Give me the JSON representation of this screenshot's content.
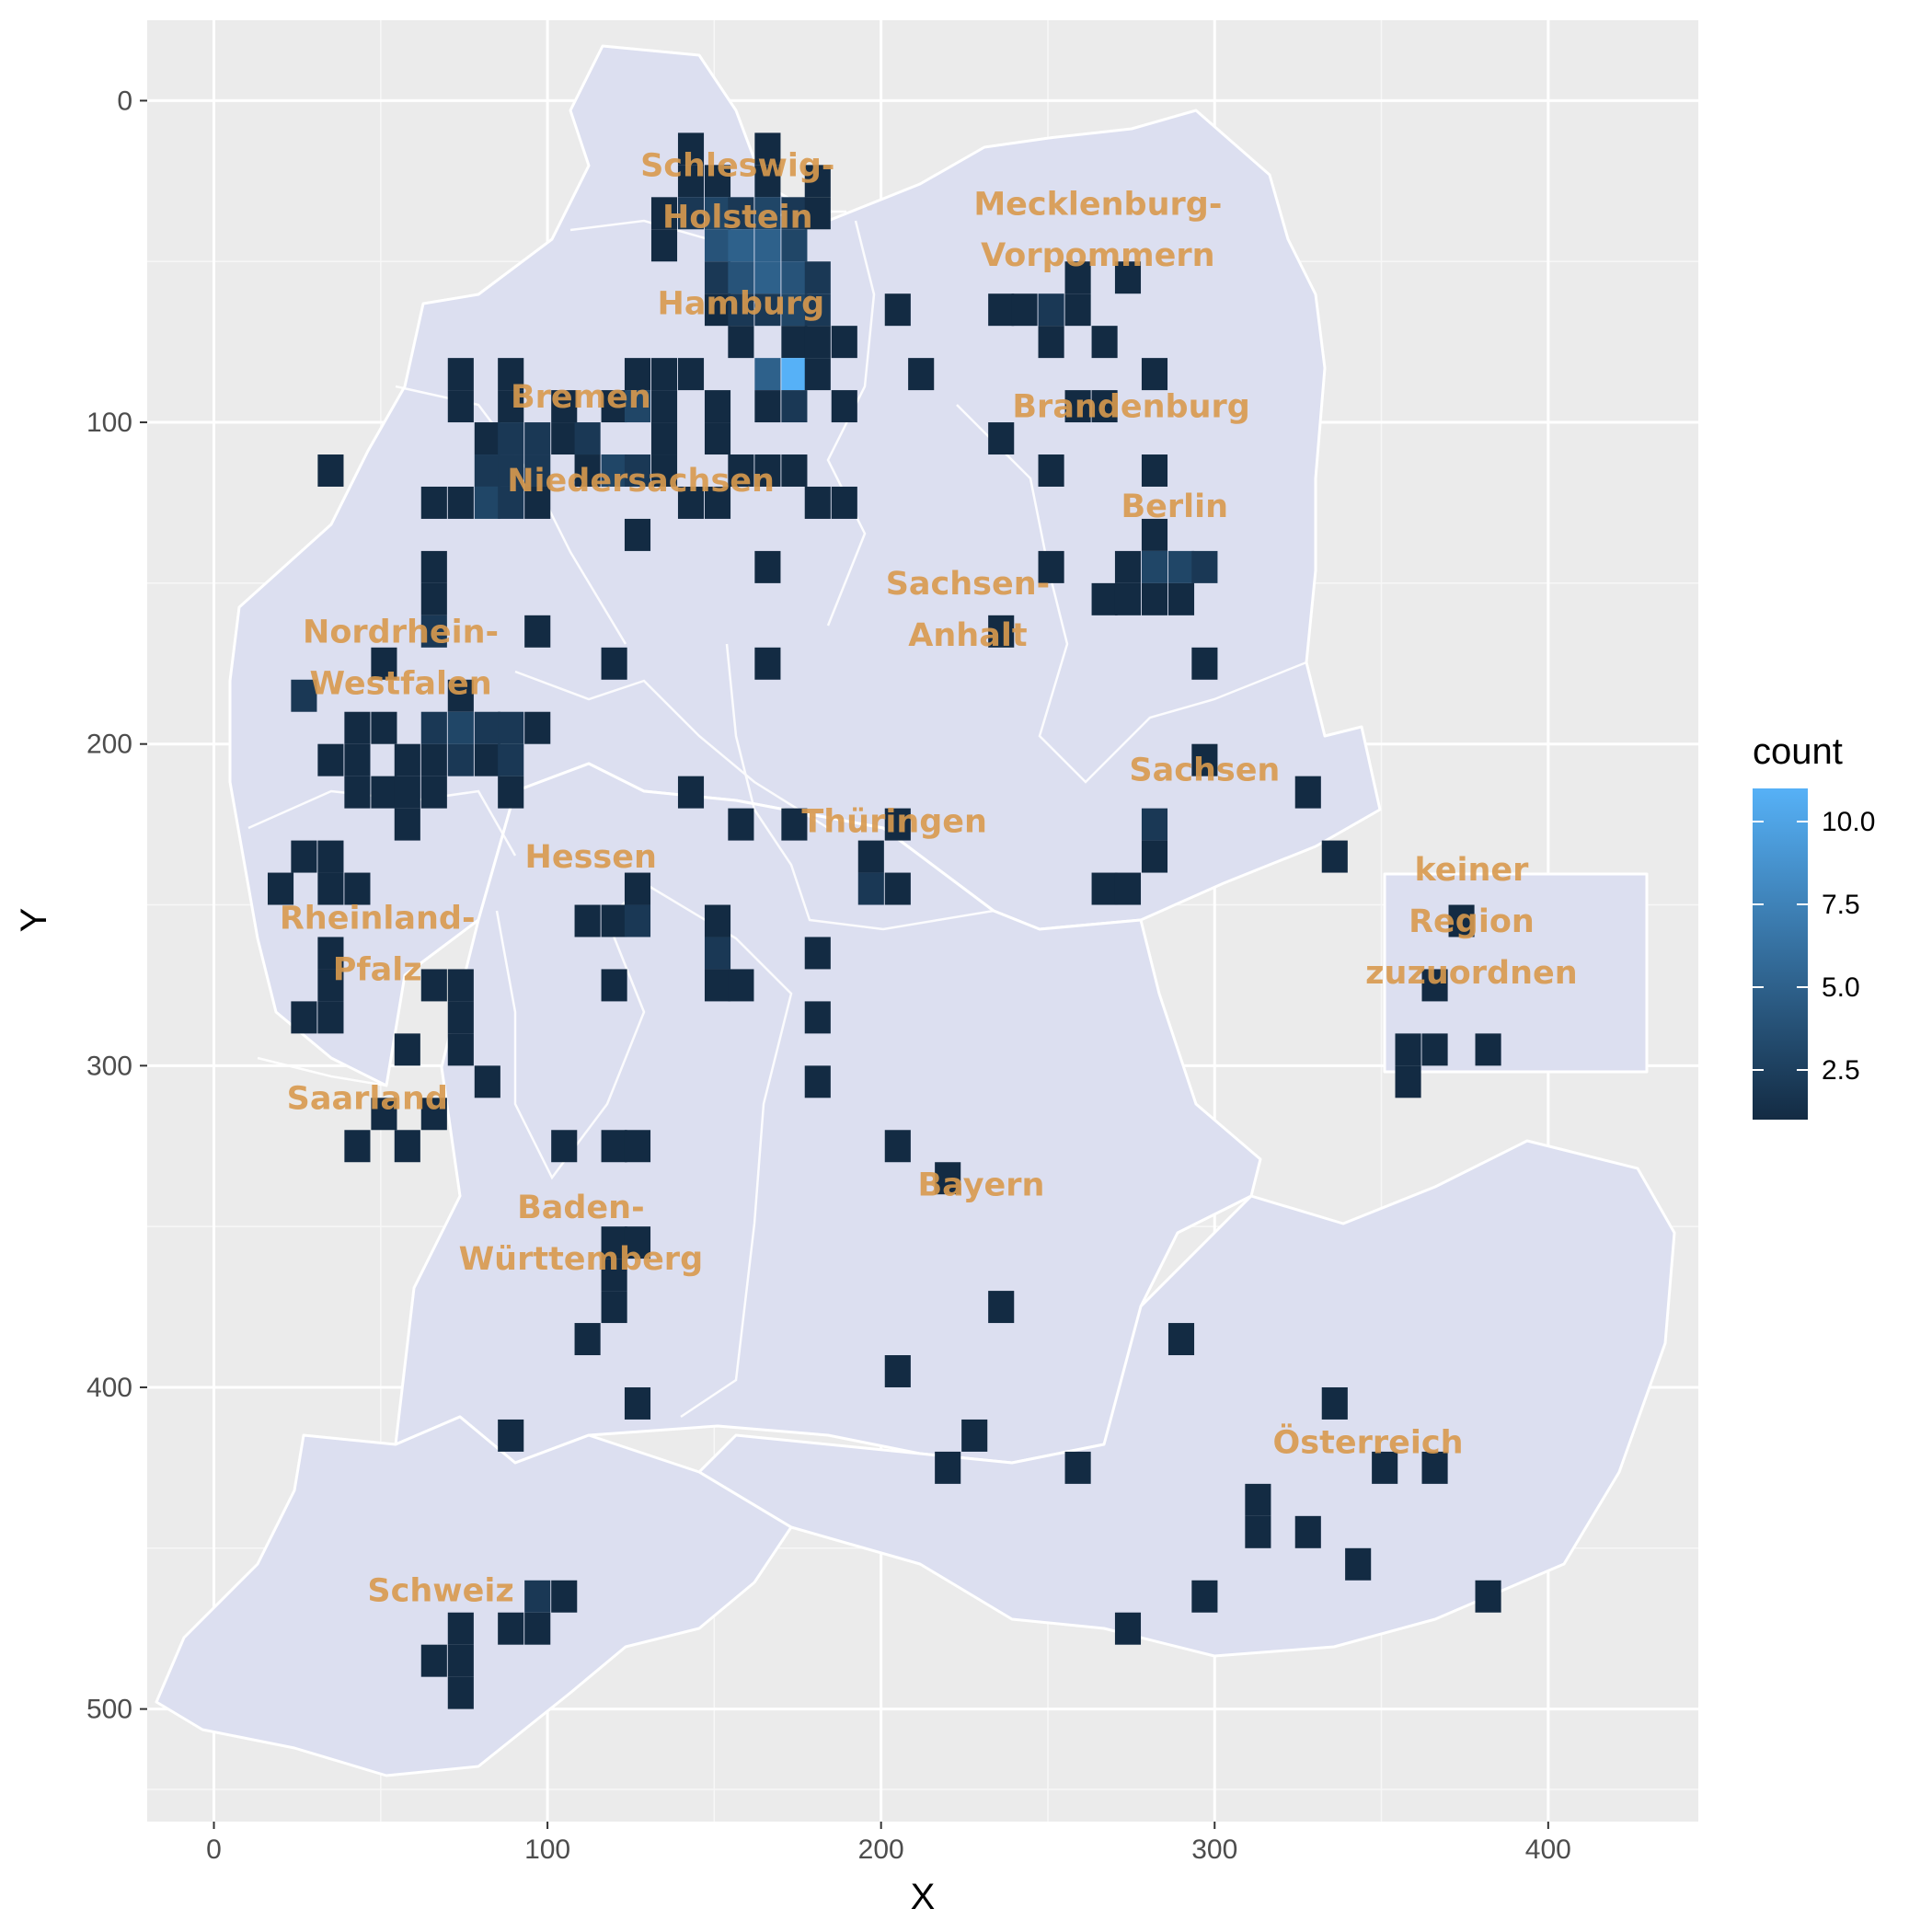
{
  "chart_data": {
    "type": "heatmap",
    "xlabel": "X",
    "ylabel": "Y",
    "xlim": [
      -20,
      445
    ],
    "ylim": [
      -25,
      535
    ],
    "y_reversed": true,
    "x_ticks": [
      0,
      100,
      200,
      300,
      400
    ],
    "y_ticks": [
      0,
      100,
      200,
      300,
      400,
      500
    ],
    "x_tick_labels": [
      "0",
      "100",
      "200",
      "300",
      "400"
    ],
    "y_tick_labels": [
      "0",
      "100",
      "200",
      "300",
      "400",
      "500"
    ],
    "grid": true,
    "bin_width": 7.75,
    "bin_height": 10,
    "legend": {
      "title": "count",
      "position": "right",
      "min": 1,
      "max": 11,
      "breaks": [
        2.5,
        5.0,
        7.5,
        10.0
      ],
      "break_labels": [
        "2.5",
        "5.0",
        "7.5",
        "10.0"
      ],
      "low_color": "#132b43",
      "high_color": "#56b1f7"
    },
    "map_regions": [
      {
        "name": "Schleswig-Holstein",
        "lines": [
          "Schleswig-",
          "Holstein"
        ],
        "x": 157,
        "y": 28
      },
      {
        "name": "Mecklenburg-Vorpommern",
        "lines": [
          "Mecklenburg-",
          "Vorpommern"
        ],
        "x": 265,
        "y": 40
      },
      {
        "name": "Hamburg",
        "lines": [
          "Hamburg"
        ],
        "x": 158,
        "y": 63
      },
      {
        "name": "Bremen",
        "lines": [
          "Bremen"
        ],
        "x": 110,
        "y": 92
      },
      {
        "name": "Brandenburg",
        "lines": [
          "Brandenburg"
        ],
        "x": 275,
        "y": 95
      },
      {
        "name": "Niedersachsen",
        "lines": [
          "Niedersachsen"
        ],
        "x": 128,
        "y": 118
      },
      {
        "name": "Berlin",
        "lines": [
          "Berlin"
        ],
        "x": 288,
        "y": 126
      },
      {
        "name": "Sachsen-Anhalt",
        "lines": [
          "Sachsen-",
          "Anhalt"
        ],
        "x": 226,
        "y": 158
      },
      {
        "name": "Nordrhein-Westfalen",
        "lines": [
          "Nordrhein-",
          "Westfalen"
        ],
        "x": 56,
        "y": 173
      },
      {
        "name": "Sachsen",
        "lines": [
          "Sachsen"
        ],
        "x": 297,
        "y": 208
      },
      {
        "name": "Thüringen",
        "lines": [
          "Thüringen"
        ],
        "x": 204,
        "y": 224
      },
      {
        "name": "Hessen",
        "lines": [
          "Hessen"
        ],
        "x": 113,
        "y": 235
      },
      {
        "name": "keiner Region zuzuordnen",
        "lines": [
          "keiner",
          "Region",
          "zuzuordnen"
        ],
        "x": 377,
        "y": 255
      },
      {
        "name": "Rheinland-Pfalz",
        "lines": [
          "Rheinland-",
          "Pfalz"
        ],
        "x": 49,
        "y": 262
      },
      {
        "name": "Saarland",
        "lines": [
          "Saarland"
        ],
        "x": 46,
        "y": 310
      },
      {
        "name": "Bayern",
        "lines": [
          "Bayern"
        ],
        "x": 230,
        "y": 337
      },
      {
        "name": "Baden-Württemberg",
        "lines": [
          "Baden-",
          "Württemberg"
        ],
        "x": 110,
        "y": 352
      },
      {
        "name": "Österreich",
        "lines": [
          "Österreich"
        ],
        "x": 346,
        "y": 417
      },
      {
        "name": "Schweiz",
        "lines": [
          "Schweiz"
        ],
        "x": 68,
        "y": 463
      }
    ],
    "bins": [
      {
        "x": 143,
        "y": 15,
        "count": 1
      },
      {
        "x": 166,
        "y": 15,
        "count": 1
      },
      {
        "x": 143,
        "y": 25,
        "count": 1
      },
      {
        "x": 151,
        "y": 25,
        "count": 1
      },
      {
        "x": 166,
        "y": 25,
        "count": 1
      },
      {
        "x": 181,
        "y": 25,
        "count": 1
      },
      {
        "x": 135,
        "y": 35,
        "count": 1
      },
      {
        "x": 143,
        "y": 35,
        "count": 2
      },
      {
        "x": 151,
        "y": 35,
        "count": 3
      },
      {
        "x": 158,
        "y": 35,
        "count": 2
      },
      {
        "x": 166,
        "y": 35,
        "count": 3
      },
      {
        "x": 174,
        "y": 35,
        "count": 2
      },
      {
        "x": 181,
        "y": 35,
        "count": 1
      },
      {
        "x": 135,
        "y": 45,
        "count": 1
      },
      {
        "x": 151,
        "y": 45,
        "count": 4
      },
      {
        "x": 158,
        "y": 45,
        "count": 5
      },
      {
        "x": 166,
        "y": 45,
        "count": 5
      },
      {
        "x": 174,
        "y": 45,
        "count": 3
      },
      {
        "x": 151,
        "y": 55,
        "count": 2
      },
      {
        "x": 158,
        "y": 55,
        "count": 4
      },
      {
        "x": 166,
        "y": 55,
        "count": 5
      },
      {
        "x": 174,
        "y": 55,
        "count": 4
      },
      {
        "x": 181,
        "y": 55,
        "count": 2
      },
      {
        "x": 259,
        "y": 55,
        "count": 1
      },
      {
        "x": 274,
        "y": 55,
        "count": 1
      },
      {
        "x": 151,
        "y": 65,
        "count": 1
      },
      {
        "x": 158,
        "y": 65,
        "count": 2
      },
      {
        "x": 166,
        "y": 65,
        "count": 2
      },
      {
        "x": 174,
        "y": 65,
        "count": 3
      },
      {
        "x": 181,
        "y": 65,
        "count": 2
      },
      {
        "x": 205,
        "y": 65,
        "count": 1
      },
      {
        "x": 236,
        "y": 65,
        "count": 1
      },
      {
        "x": 243,
        "y": 65,
        "count": 1
      },
      {
        "x": 251,
        "y": 65,
        "count": 2
      },
      {
        "x": 259,
        "y": 65,
        "count": 1
      },
      {
        "x": 158,
        "y": 75,
        "count": 1
      },
      {
        "x": 174,
        "y": 75,
        "count": 1
      },
      {
        "x": 181,
        "y": 75,
        "count": 1
      },
      {
        "x": 189,
        "y": 75,
        "count": 1
      },
      {
        "x": 251,
        "y": 75,
        "count": 1
      },
      {
        "x": 267,
        "y": 75,
        "count": 1
      },
      {
        "x": 74,
        "y": 85,
        "count": 1
      },
      {
        "x": 89,
        "y": 85,
        "count": 1
      },
      {
        "x": 127,
        "y": 85,
        "count": 1
      },
      {
        "x": 135,
        "y": 85,
        "count": 1
      },
      {
        "x": 143,
        "y": 85,
        "count": 1
      },
      {
        "x": 166,
        "y": 85,
        "count": 5
      },
      {
        "x": 174,
        "y": 85,
        "count": 11
      },
      {
        "x": 181,
        "y": 85,
        "count": 1
      },
      {
        "x": 212,
        "y": 85,
        "count": 1
      },
      {
        "x": 282,
        "y": 85,
        "count": 1
      },
      {
        "x": 74,
        "y": 95,
        "count": 1
      },
      {
        "x": 89,
        "y": 95,
        "count": 1
      },
      {
        "x": 105,
        "y": 95,
        "count": 1
      },
      {
        "x": 120,
        "y": 95,
        "count": 1
      },
      {
        "x": 127,
        "y": 95,
        "count": 3
      },
      {
        "x": 135,
        "y": 95,
        "count": 1
      },
      {
        "x": 151,
        "y": 95,
        "count": 1
      },
      {
        "x": 166,
        "y": 95,
        "count": 1
      },
      {
        "x": 174,
        "y": 95,
        "count": 2
      },
      {
        "x": 189,
        "y": 95,
        "count": 1
      },
      {
        "x": 259,
        "y": 95,
        "count": 1
      },
      {
        "x": 267,
        "y": 95,
        "count": 1
      },
      {
        "x": 82,
        "y": 105,
        "count": 1
      },
      {
        "x": 89,
        "y": 105,
        "count": 2
      },
      {
        "x": 97,
        "y": 105,
        "count": 2
      },
      {
        "x": 105,
        "y": 105,
        "count": 1
      },
      {
        "x": 112,
        "y": 105,
        "count": 2
      },
      {
        "x": 135,
        "y": 105,
        "count": 1
      },
      {
        "x": 151,
        "y": 105,
        "count": 1
      },
      {
        "x": 236,
        "y": 105,
        "count": 1
      },
      {
        "x": 35,
        "y": 115,
        "count": 1
      },
      {
        "x": 82,
        "y": 115,
        "count": 2
      },
      {
        "x": 89,
        "y": 115,
        "count": 2
      },
      {
        "x": 97,
        "y": 115,
        "count": 2
      },
      {
        "x": 112,
        "y": 115,
        "count": 1
      },
      {
        "x": 120,
        "y": 115,
        "count": 3
      },
      {
        "x": 127,
        "y": 115,
        "count": 2
      },
      {
        "x": 135,
        "y": 115,
        "count": 1
      },
      {
        "x": 158,
        "y": 115,
        "count": 1
      },
      {
        "x": 166,
        "y": 115,
        "count": 1
      },
      {
        "x": 174,
        "y": 115,
        "count": 1
      },
      {
        "x": 251,
        "y": 115,
        "count": 1
      },
      {
        "x": 282,
        "y": 115,
        "count": 1
      },
      {
        "x": 66,
        "y": 125,
        "count": 1
      },
      {
        "x": 74,
        "y": 125,
        "count": 1
      },
      {
        "x": 82,
        "y": 125,
        "count": 3
      },
      {
        "x": 89,
        "y": 125,
        "count": 2
      },
      {
        "x": 97,
        "y": 125,
        "count": 1
      },
      {
        "x": 143,
        "y": 125,
        "count": 1
      },
      {
        "x": 151,
        "y": 125,
        "count": 1
      },
      {
        "x": 181,
        "y": 125,
        "count": 1
      },
      {
        "x": 189,
        "y": 125,
        "count": 1
      },
      {
        "x": 127,
        "y": 135,
        "count": 1
      },
      {
        "x": 282,
        "y": 135,
        "count": 1
      },
      {
        "x": 66,
        "y": 145,
        "count": 1
      },
      {
        "x": 166,
        "y": 145,
        "count": 1
      },
      {
        "x": 251,
        "y": 145,
        "count": 1
      },
      {
        "x": 274,
        "y": 145,
        "count": 1
      },
      {
        "x": 282,
        "y": 145,
        "count": 3
      },
      {
        "x": 290,
        "y": 145,
        "count": 3
      },
      {
        "x": 297,
        "y": 145,
        "count": 2
      },
      {
        "x": 66,
        "y": 155,
        "count": 1
      },
      {
        "x": 267,
        "y": 155,
        "count": 1
      },
      {
        "x": 274,
        "y": 155,
        "count": 1
      },
      {
        "x": 282,
        "y": 155,
        "count": 1
      },
      {
        "x": 290,
        "y": 155,
        "count": 1
      },
      {
        "x": 66,
        "y": 165,
        "count": 2
      },
      {
        "x": 97,
        "y": 165,
        "count": 1
      },
      {
        "x": 236,
        "y": 165,
        "count": 1
      },
      {
        "x": 51,
        "y": 175,
        "count": 1
      },
      {
        "x": 120,
        "y": 175,
        "count": 1
      },
      {
        "x": 166,
        "y": 175,
        "count": 1
      },
      {
        "x": 297,
        "y": 175,
        "count": 1
      },
      {
        "x": 27,
        "y": 185,
        "count": 2
      },
      {
        "x": 74,
        "y": 185,
        "count": 1
      },
      {
        "x": 43,
        "y": 195,
        "count": 1
      },
      {
        "x": 51,
        "y": 195,
        "count": 1
      },
      {
        "x": 66,
        "y": 195,
        "count": 2
      },
      {
        "x": 74,
        "y": 195,
        "count": 3
      },
      {
        "x": 82,
        "y": 195,
        "count": 2
      },
      {
        "x": 89,
        "y": 195,
        "count": 2
      },
      {
        "x": 97,
        "y": 195,
        "count": 1
      },
      {
        "x": 35,
        "y": 205,
        "count": 1
      },
      {
        "x": 43,
        "y": 205,
        "count": 1
      },
      {
        "x": 58,
        "y": 205,
        "count": 1
      },
      {
        "x": 66,
        "y": 205,
        "count": 1
      },
      {
        "x": 74,
        "y": 205,
        "count": 2
      },
      {
        "x": 82,
        "y": 205,
        "count": 1
      },
      {
        "x": 89,
        "y": 205,
        "count": 2
      },
      {
        "x": 297,
        "y": 205,
        "count": 1
      },
      {
        "x": 43,
        "y": 215,
        "count": 1
      },
      {
        "x": 51,
        "y": 215,
        "count": 1
      },
      {
        "x": 58,
        "y": 215,
        "count": 1
      },
      {
        "x": 66,
        "y": 215,
        "count": 1
      },
      {
        "x": 89,
        "y": 215,
        "count": 1
      },
      {
        "x": 143,
        "y": 215,
        "count": 1
      },
      {
        "x": 328,
        "y": 215,
        "count": 1
      },
      {
        "x": 58,
        "y": 225,
        "count": 1
      },
      {
        "x": 158,
        "y": 225,
        "count": 1
      },
      {
        "x": 174,
        "y": 225,
        "count": 1
      },
      {
        "x": 205,
        "y": 225,
        "count": 1
      },
      {
        "x": 282,
        "y": 225,
        "count": 2
      },
      {
        "x": 27,
        "y": 235,
        "count": 1
      },
      {
        "x": 35,
        "y": 235,
        "count": 1
      },
      {
        "x": 197,
        "y": 235,
        "count": 1
      },
      {
        "x": 282,
        "y": 235,
        "count": 1
      },
      {
        "x": 336,
        "y": 235,
        "count": 1
      },
      {
        "x": 20,
        "y": 245,
        "count": 1
      },
      {
        "x": 35,
        "y": 245,
        "count": 1
      },
      {
        "x": 43,
        "y": 245,
        "count": 1
      },
      {
        "x": 127,
        "y": 245,
        "count": 1
      },
      {
        "x": 197,
        "y": 245,
        "count": 2
      },
      {
        "x": 205,
        "y": 245,
        "count": 1
      },
      {
        "x": 267,
        "y": 245,
        "count": 1
      },
      {
        "x": 274,
        "y": 245,
        "count": 1
      },
      {
        "x": 112,
        "y": 255,
        "count": 1
      },
      {
        "x": 120,
        "y": 255,
        "count": 1
      },
      {
        "x": 127,
        "y": 255,
        "count": 2
      },
      {
        "x": 151,
        "y": 255,
        "count": 1
      },
      {
        "x": 374,
        "y": 255,
        "count": 1
      },
      {
        "x": 35,
        "y": 265,
        "count": 1
      },
      {
        "x": 151,
        "y": 265,
        "count": 2
      },
      {
        "x": 181,
        "y": 265,
        "count": 1
      },
      {
        "x": 35,
        "y": 275,
        "count": 1
      },
      {
        "x": 66,
        "y": 275,
        "count": 1
      },
      {
        "x": 74,
        "y": 275,
        "count": 1
      },
      {
        "x": 120,
        "y": 275,
        "count": 1
      },
      {
        "x": 151,
        "y": 275,
        "count": 1
      },
      {
        "x": 158,
        "y": 275,
        "count": 1
      },
      {
        "x": 366,
        "y": 275,
        "count": 1
      },
      {
        "x": 27,
        "y": 285,
        "count": 1
      },
      {
        "x": 35,
        "y": 285,
        "count": 1
      },
      {
        "x": 74,
        "y": 285,
        "count": 1
      },
      {
        "x": 181,
        "y": 285,
        "count": 1
      },
      {
        "x": 58,
        "y": 295,
        "count": 1
      },
      {
        "x": 74,
        "y": 295,
        "count": 1
      },
      {
        "x": 358,
        "y": 295,
        "count": 1
      },
      {
        "x": 366,
        "y": 295,
        "count": 1
      },
      {
        "x": 382,
        "y": 295,
        "count": 1
      },
      {
        "x": 82,
        "y": 305,
        "count": 1
      },
      {
        "x": 181,
        "y": 305,
        "count": 1
      },
      {
        "x": 358,
        "y": 305,
        "count": 1
      },
      {
        "x": 51,
        "y": 315,
        "count": 1
      },
      {
        "x": 66,
        "y": 315,
        "count": 1
      },
      {
        "x": 43,
        "y": 325,
        "count": 1
      },
      {
        "x": 58,
        "y": 325,
        "count": 1
      },
      {
        "x": 105,
        "y": 325,
        "count": 1
      },
      {
        "x": 120,
        "y": 325,
        "count": 1
      },
      {
        "x": 127,
        "y": 325,
        "count": 1
      },
      {
        "x": 205,
        "y": 325,
        "count": 1
      },
      {
        "x": 220,
        "y": 335,
        "count": 1
      },
      {
        "x": 120,
        "y": 355,
        "count": 1
      },
      {
        "x": 127,
        "y": 355,
        "count": 1
      },
      {
        "x": 120,
        "y": 365,
        "count": 1
      },
      {
        "x": 120,
        "y": 375,
        "count": 1
      },
      {
        "x": 236,
        "y": 375,
        "count": 1
      },
      {
        "x": 112,
        "y": 385,
        "count": 1
      },
      {
        "x": 290,
        "y": 385,
        "count": 1
      },
      {
        "x": 205,
        "y": 395,
        "count": 1
      },
      {
        "x": 127,
        "y": 405,
        "count": 1
      },
      {
        "x": 336,
        "y": 405,
        "count": 1
      },
      {
        "x": 89,
        "y": 415,
        "count": 1
      },
      {
        "x": 228,
        "y": 415,
        "count": 1
      },
      {
        "x": 220,
        "y": 425,
        "count": 1
      },
      {
        "x": 259,
        "y": 425,
        "count": 1
      },
      {
        "x": 351,
        "y": 425,
        "count": 1
      },
      {
        "x": 366,
        "y": 425,
        "count": 1
      },
      {
        "x": 313,
        "y": 435,
        "count": 1
      },
      {
        "x": 313,
        "y": 445,
        "count": 1
      },
      {
        "x": 328,
        "y": 445,
        "count": 1
      },
      {
        "x": 343,
        "y": 455,
        "count": 1
      },
      {
        "x": 97,
        "y": 465,
        "count": 2
      },
      {
        "x": 105,
        "y": 465,
        "count": 1
      },
      {
        "x": 297,
        "y": 465,
        "count": 1
      },
      {
        "x": 382,
        "y": 465,
        "count": 1
      },
      {
        "x": 74,
        "y": 475,
        "count": 1
      },
      {
        "x": 89,
        "y": 475,
        "count": 1
      },
      {
        "x": 97,
        "y": 475,
        "count": 1
      },
      {
        "x": 274,
        "y": 475,
        "count": 1
      },
      {
        "x": 66,
        "y": 485,
        "count": 1
      },
      {
        "x": 74,
        "y": 485,
        "count": 1
      },
      {
        "x": 74,
        "y": 495,
        "count": 1
      }
    ]
  }
}
